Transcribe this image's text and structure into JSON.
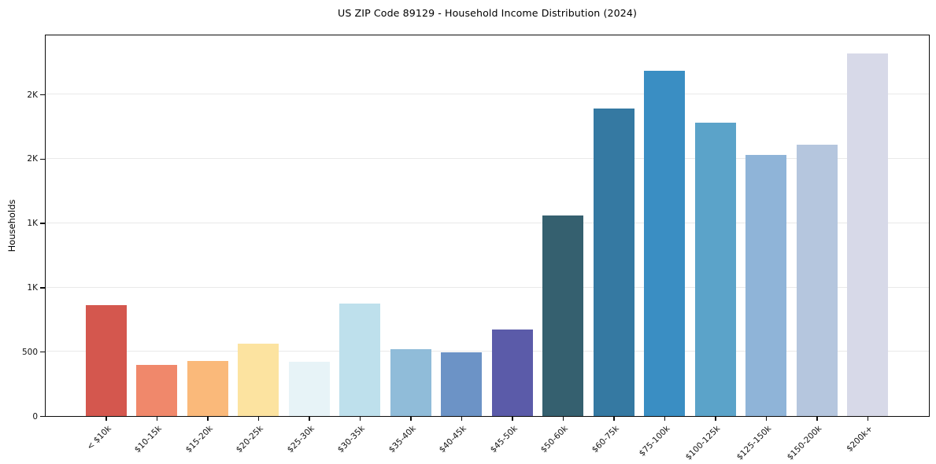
{
  "chart_data": {
    "type": "bar",
    "title": "US ZIP Code 89129 - Household Income Distribution (2024)",
    "xlabel": "",
    "ylabel": "Households",
    "categories": [
      "< $10k",
      "$10-15k",
      "$15-20k",
      "$20-25k",
      "$25-30k",
      "$30-35k",
      "$35-40k",
      "$40-45k",
      "$45-50k",
      "$50-60k",
      "$60-75k",
      "$75-100k",
      "$100-125k",
      "$125-150k",
      "$150-200k",
      "$200k+"
    ],
    "values": [
      860,
      400,
      430,
      560,
      420,
      875,
      520,
      495,
      675,
      1560,
      2390,
      2685,
      2280,
      2030,
      2110,
      2820
    ],
    "bar_colors": [
      "#d4574e",
      "#f0886b",
      "#fab97a",
      "#fce3a0",
      "#e7f3f7",
      "#bee0ec",
      "#90bcd9",
      "#6c93c6",
      "#5b5ba9",
      "#35606f",
      "#3579a2",
      "#3a8ec3",
      "#5ba3c9",
      "#8fb4d8",
      "#b5c6de",
      "#d7d9e8"
    ],
    "ylim": [
      0,
      2960
    ],
    "yticks": [
      {
        "value": 0,
        "label": "0"
      },
      {
        "value": 500,
        "label": "500"
      },
      {
        "value": 1000,
        "label": "1K"
      },
      {
        "value": 1500,
        "label": "1K"
      },
      {
        "value": 2000,
        "label": "2K"
      },
      {
        "value": 2500,
        "label": "2K"
      }
    ],
    "grid": "horizontal",
    "legend": "none",
    "colors": {
      "spine": "#0b0b0b",
      "grid": "#e9e9e9",
      "text": "#000000",
      "background": "#ffffff"
    }
  }
}
